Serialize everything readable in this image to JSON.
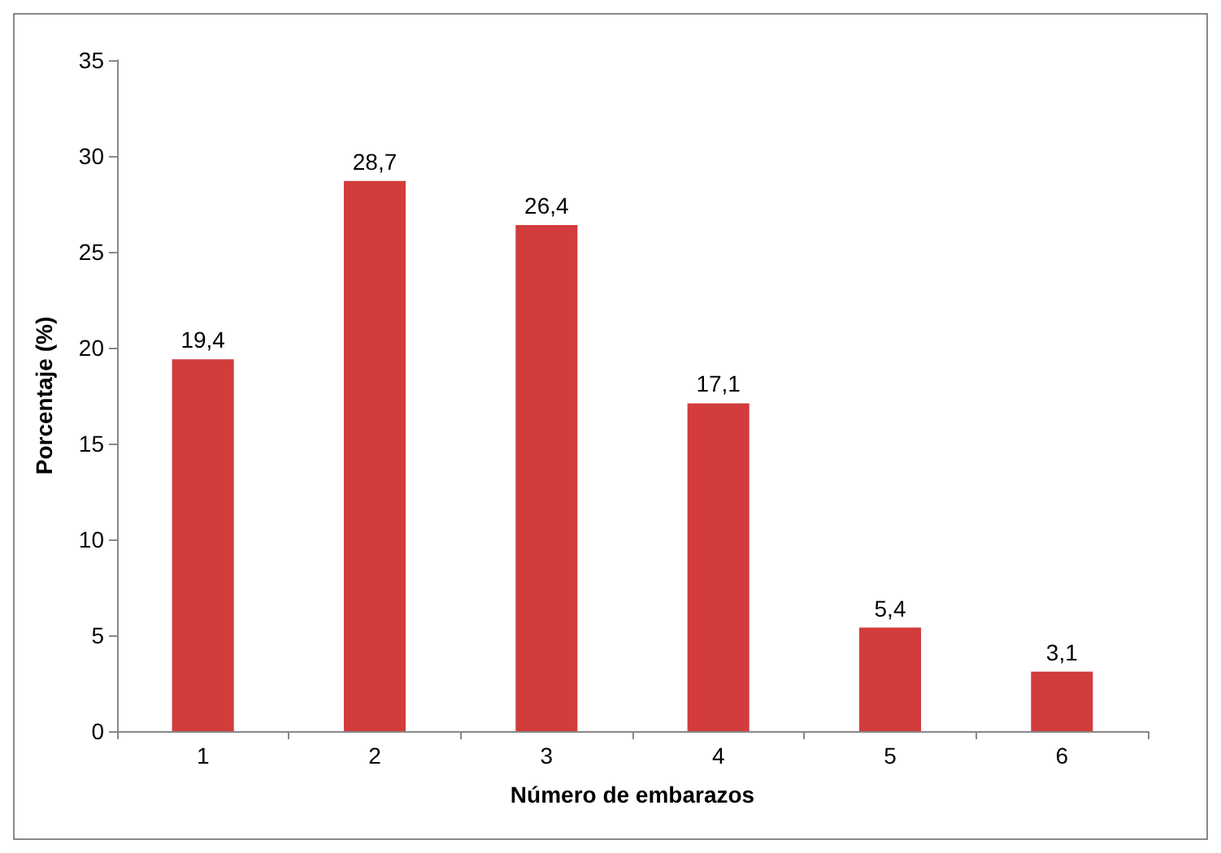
{
  "chart_data": {
    "type": "bar",
    "xlabel": "Número de embarazos",
    "ylabel": "Porcentaje (%)",
    "categories": [
      "1",
      "2",
      "3",
      "4",
      "5",
      "6"
    ],
    "values": [
      19.4,
      28.7,
      26.4,
      17.1,
      5.4,
      3.1
    ],
    "value_labels": [
      "19,4",
      "28,7",
      "26,4",
      "17,1",
      "5,4",
      "3,1"
    ],
    "color": "#d23c3c",
    "ylim": [
      0,
      35
    ],
    "yticks": [
      0,
      5,
      10,
      15,
      20,
      25,
      30,
      35
    ]
  }
}
